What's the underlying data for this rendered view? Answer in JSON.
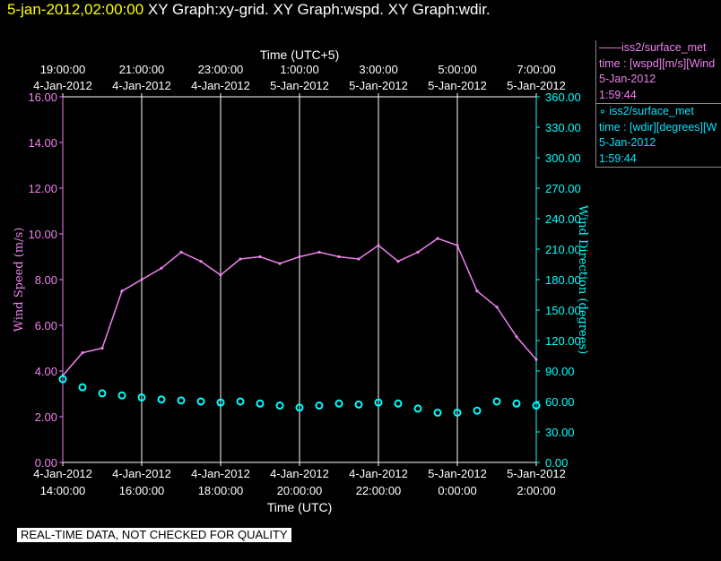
{
  "header": {
    "datetime": "5-jan-2012,02:00:00",
    "graphs": "XY Graph:xy-grid.  XY Graph:wspd.  XY Graph:wdir."
  },
  "legend": {
    "speed": {
      "title": "iss2/surface_met",
      "line1": "time : [wspd][m/s][Wind",
      "line2": "5-Jan-2012",
      "line3": "1:59:44"
    },
    "dir": {
      "title": "iss2/surface_met",
      "line1": "time : [wdir][degrees][W",
      "line2": "5-Jan-2012",
      "line3": "1:59:44"
    }
  },
  "footer": "REAL-TIME DATA, NOT CHECKED FOR QUALITY",
  "colors": {
    "speed": "#ee82ee",
    "direction": "#00ffff",
    "grid": "#ffffff",
    "background": "#000000"
  },
  "chart_data": {
    "type": "line",
    "top_axis_label": "Time (UTC+5)",
    "xlabel": "Time (UTC)",
    "ylabel_left": "Wind Speed (m/s)",
    "ylabel_right": "Wind Direction (degrees)",
    "xlim_hours": [
      14,
      26
    ],
    "x_ticks_bottom": [
      {
        "date": "4-Jan-2012",
        "time": "14:00:00"
      },
      {
        "date": "4-Jan-2012",
        "time": "16:00:00"
      },
      {
        "date": "4-Jan-2012",
        "time": "18:00:00"
      },
      {
        "date": "4-Jan-2012",
        "time": "20:00:00"
      },
      {
        "date": "4-Jan-2012",
        "time": "22:00:00"
      },
      {
        "date": "5-Jan-2012",
        "time": "0:00:00"
      },
      {
        "date": "5-Jan-2012",
        "time": "2:00:00"
      }
    ],
    "x_ticks_top": [
      {
        "time": "19:00:00",
        "date": "4-Jan-2012"
      },
      {
        "time": "21:00:00",
        "date": "4-Jan-2012"
      },
      {
        "time": "23:00:00",
        "date": "4-Jan-2012"
      },
      {
        "time": "1:00:00",
        "date": "5-Jan-2012"
      },
      {
        "time": "3:00:00",
        "date": "5-Jan-2012"
      },
      {
        "time": "5:00:00",
        "date": "5-Jan-2012"
      },
      {
        "time": "7:00:00",
        "date": "5-Jan-2012"
      }
    ],
    "y_left": {
      "lim": [
        0,
        16
      ],
      "ticks": [
        "0.00",
        "2.00",
        "4.00",
        "6.00",
        "8.00",
        "10.00",
        "12.00",
        "14.00",
        "16.00"
      ]
    },
    "y_right": {
      "lim": [
        0,
        360
      ],
      "ticks": [
        "0.00",
        "30.00",
        "60.00",
        "90.00",
        "120.00",
        "150.00",
        "180.00",
        "210.00",
        "240.00",
        "270.00",
        "300.00",
        "330.00",
        "360.00"
      ]
    },
    "series": [
      {
        "name": "iss2/surface_met",
        "variable": "wspd",
        "axis": "left",
        "style": "line",
        "x_hours": [
          14.0,
          14.5,
          15.0,
          15.5,
          16.0,
          16.5,
          17.0,
          17.5,
          18.0,
          18.5,
          19.0,
          19.5,
          20.0,
          20.5,
          21.0,
          21.5,
          22.0,
          22.5,
          23.0,
          23.5,
          24.0,
          24.5,
          25.0,
          25.5,
          26.0
        ],
        "values": [
          3.8,
          4.8,
          5.0,
          7.5,
          8.0,
          8.5,
          9.2,
          8.8,
          8.2,
          8.9,
          9.0,
          8.7,
          9.0,
          9.2,
          9.0,
          8.9,
          9.5,
          8.8,
          9.2,
          9.8,
          9.5,
          7.5,
          6.8,
          5.5,
          4.5
        ]
      },
      {
        "name": "iss2/surface_met",
        "variable": "wdir",
        "axis": "right",
        "style": "markers",
        "x_hours": [
          14.0,
          14.5,
          15.0,
          15.5,
          16.0,
          16.5,
          17.0,
          17.5,
          18.0,
          18.5,
          19.0,
          19.5,
          20.0,
          20.5,
          21.0,
          21.5,
          22.0,
          22.5,
          23.0,
          23.5,
          24.0,
          24.5,
          25.0,
          25.5,
          26.0
        ],
        "values": [
          82,
          74,
          68,
          66,
          64,
          62,
          61,
          60,
          59,
          60,
          58,
          56,
          54,
          56,
          58,
          57,
          59,
          58,
          53,
          49,
          49,
          51,
          60,
          58,
          56
        ]
      }
    ]
  }
}
